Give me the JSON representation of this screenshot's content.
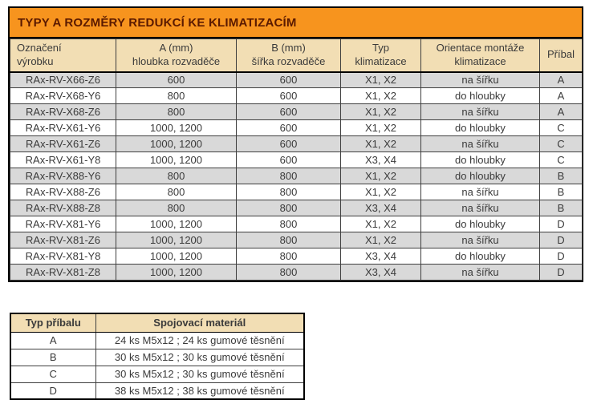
{
  "colors": {
    "title_bg": "#F7941E",
    "title_text": "#5B1A00",
    "header_bg": "#F2DEB4",
    "row_alt_bg": "#D9D9D9",
    "row_bg": "#FFFFFF",
    "border_dark": "#000000",
    "text": "#3A3A3A"
  },
  "main_table": {
    "title": "TYPY A ROZMĚRY REDUKCÍ KE KLIMATIZACÍM",
    "columns": [
      {
        "lines": [
          "Označení",
          "výrobku"
        ]
      },
      {
        "lines": [
          "A (mm)",
          "hloubka rozvaděče"
        ]
      },
      {
        "lines": [
          "B (mm)",
          "šířka rozvaděče"
        ]
      },
      {
        "lines": [
          "Typ",
          "klimatizace"
        ]
      },
      {
        "lines": [
          "Orientace montáže",
          "klimatizace"
        ]
      },
      {
        "lines": [
          "Příbal"
        ]
      }
    ],
    "rows": [
      [
        "RAx-RV-X66-Z6",
        "600",
        "600",
        "X1, X2",
        "na šířku",
        "A"
      ],
      [
        "RAx-RV-X68-Y6",
        "800",
        "600",
        "X1, X2",
        "do hloubky",
        "A"
      ],
      [
        "RAx-RV-X68-Z6",
        "800",
        "600",
        "X1, X2",
        "na šířku",
        "A"
      ],
      [
        "RAx-RV-X61-Y6",
        "1000, 1200",
        "600",
        "X1, X2",
        "do hloubky",
        "C"
      ],
      [
        "RAx-RV-X61-Z6",
        "1000, 1200",
        "600",
        "X1, X2",
        "na šířku",
        "C"
      ],
      [
        "RAx-RV-X61-Y8",
        "1000, 1200",
        "600",
        "X3, X4",
        "do hloubky",
        "C"
      ],
      [
        "RAx-RV-X88-Y6",
        "800",
        "800",
        "X1, X2",
        "do hloubky",
        "B"
      ],
      [
        "RAx-RV-X88-Z6",
        "800",
        "800",
        "X1, X2",
        "na šířku",
        "B"
      ],
      [
        "RAx-RV-X88-Z8",
        "800",
        "800",
        "X3, X4",
        "na šířku",
        "B"
      ],
      [
        "RAx-RV-X81-Y6",
        "1000, 1200",
        "800",
        "X1, X2",
        "do hloubky",
        "D"
      ],
      [
        "RAx-RV-X81-Z6",
        "1000, 1200",
        "800",
        "X1, X2",
        "na šířku",
        "D"
      ],
      [
        "RAx-RV-X81-Y8",
        "1000, 1200",
        "800",
        "X3, X4",
        "do hloubky",
        "D"
      ],
      [
        "RAx-RV-X81-Z8",
        "1000, 1200",
        "800",
        "X3, X4",
        "na šířku",
        "D"
      ]
    ]
  },
  "accessory_table": {
    "headers": [
      "Typ příbalu",
      "Spojovací materiál"
    ],
    "rows": [
      [
        "A",
        "24 ks M5x12 ; 24 ks gumové těsnění"
      ],
      [
        "B",
        "30 ks M5x12 ; 30 ks gumové těsnění"
      ],
      [
        "C",
        "30 ks M5x12 ; 30 ks gumové těsnění"
      ],
      [
        "D",
        "38 ks M5x12 ; 38 ks gumové těsnění"
      ]
    ]
  }
}
